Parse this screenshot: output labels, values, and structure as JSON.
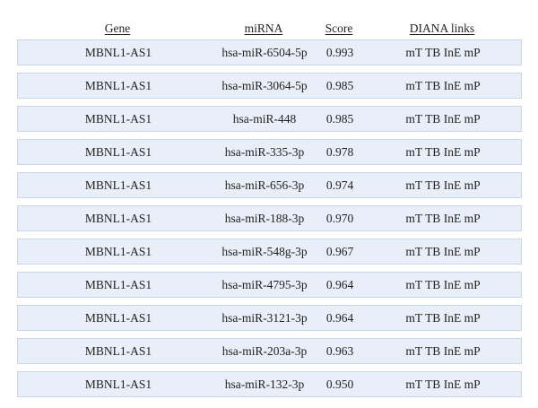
{
  "headers": {
    "gene": "Gene",
    "mirna": "miRNA",
    "score": "Score",
    "links": "DIANA links"
  },
  "rows": [
    {
      "gene": "MBNL1-AS1",
      "mirna": "hsa-miR-6504-5p",
      "score": "0.993",
      "links": [
        "mT",
        "TB",
        "InE",
        "mP"
      ]
    },
    {
      "gene": "MBNL1-AS1",
      "mirna": "hsa-miR-3064-5p",
      "score": "0.985",
      "links": [
        "mT",
        "TB",
        "InE",
        "mP"
      ]
    },
    {
      "gene": "MBNL1-AS1",
      "mirna": "hsa-miR-448",
      "score": "0.985",
      "links": [
        "mT",
        "TB",
        "InE",
        "mP"
      ]
    },
    {
      "gene": "MBNL1-AS1",
      "mirna": "hsa-miR-335-3p",
      "score": "0.978",
      "links": [
        "mT",
        "TB",
        "InE",
        "mP"
      ]
    },
    {
      "gene": "MBNL1-AS1",
      "mirna": "hsa-miR-656-3p",
      "score": "0.974",
      "links": [
        "mT",
        "TB",
        "InE",
        "mP"
      ]
    },
    {
      "gene": "MBNL1-AS1",
      "mirna": "hsa-miR-188-3p",
      "score": "0.970",
      "links": [
        "mT",
        "TB",
        "InE",
        "mP"
      ]
    },
    {
      "gene": "MBNL1-AS1",
      "mirna": "hsa-miR-548g-3p",
      "score": "0.967",
      "links": [
        "mT",
        "TB",
        "InE",
        "mP"
      ]
    },
    {
      "gene": "MBNL1-AS1",
      "mirna": "hsa-miR-4795-3p",
      "score": "0.964",
      "links": [
        "mT",
        "TB",
        "InE",
        "mP"
      ]
    },
    {
      "gene": "MBNL1-AS1",
      "mirna": "hsa-miR-3121-3p",
      "score": "0.964",
      "links": [
        "mT",
        "TB",
        "InE",
        "mP"
      ]
    },
    {
      "gene": "MBNL1-AS1",
      "mirna": "hsa-miR-203a-3p",
      "score": "0.963",
      "links": [
        "mT",
        "TB",
        "InE",
        "mP"
      ]
    },
    {
      "gene": "MBNL1-AS1",
      "mirna": "hsa-miR-132-3p",
      "score": "0.950",
      "links": [
        "mT",
        "TB",
        "InE",
        "mP"
      ]
    }
  ],
  "colors": {
    "row_background": "#e8eff8",
    "row_border": "#c9d6e6",
    "text": "#231f20"
  }
}
